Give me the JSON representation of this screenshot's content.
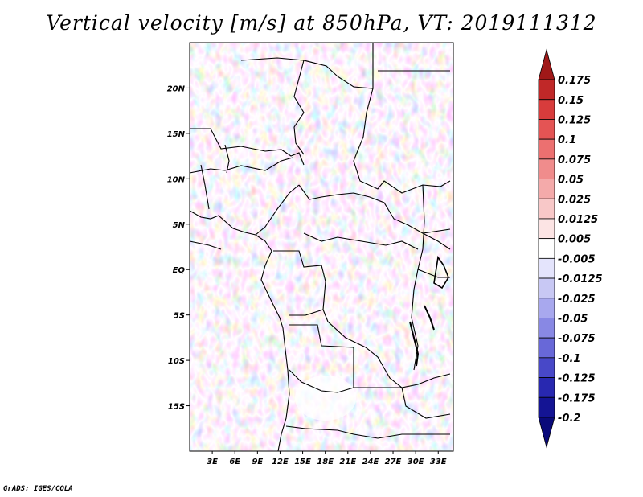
{
  "title": "Vertical velocity [m/s] at 850hPa, VT: 2019111312",
  "credit": "GrADS: IGES/COLA",
  "map": {
    "lon_range": [
      0,
      35
    ],
    "lat_range": [
      -20,
      25
    ],
    "lat_ticks": [
      {
        "value": 20,
        "label": "20N"
      },
      {
        "value": 15,
        "label": "15N"
      },
      {
        "value": 10,
        "label": "10N"
      },
      {
        "value": 5,
        "label": "5N"
      },
      {
        "value": 0,
        "label": "EQ"
      },
      {
        "value": -5,
        "label": "5S"
      },
      {
        "value": -10,
        "label": "10S"
      },
      {
        "value": -15,
        "label": "15S"
      }
    ],
    "lon_ticks": [
      {
        "value": 3,
        "label": "3E"
      },
      {
        "value": 6,
        "label": "6E"
      },
      {
        "value": 9,
        "label": "9E"
      },
      {
        "value": 12,
        "label": "12E"
      },
      {
        "value": 15,
        "label": "15E"
      },
      {
        "value": 18,
        "label": "18E"
      },
      {
        "value": 21,
        "label": "21E"
      },
      {
        "value": 24,
        "label": "24E"
      },
      {
        "value": 27,
        "label": "27E"
      },
      {
        "value": 30,
        "label": "30E"
      },
      {
        "value": 33,
        "label": "33E"
      }
    ]
  },
  "colorbar": {
    "labels": [
      "0.175",
      "0.15",
      "0.125",
      "0.1",
      "0.075",
      "0.05",
      "0.025",
      "0.0125",
      "0.005",
      "-0.005",
      "-0.0125",
      "-0.025",
      "-0.05",
      "-0.075",
      "-0.1",
      "-0.125",
      "-0.175",
      "-0.2"
    ],
    "colors": [
      "#a01818",
      "#c02828",
      "#d83c3c",
      "#e45454",
      "#ec7070",
      "#f08c8c",
      "#f4aaaa",
      "#f8c8c8",
      "#fce4e4",
      "#ffffff",
      "#e4e4fc",
      "#c8c8f4",
      "#a8a8ee",
      "#8888e4",
      "#6868d8",
      "#4848c8",
      "#2828b0",
      "#141494",
      "#0a0a7a"
    ]
  }
}
